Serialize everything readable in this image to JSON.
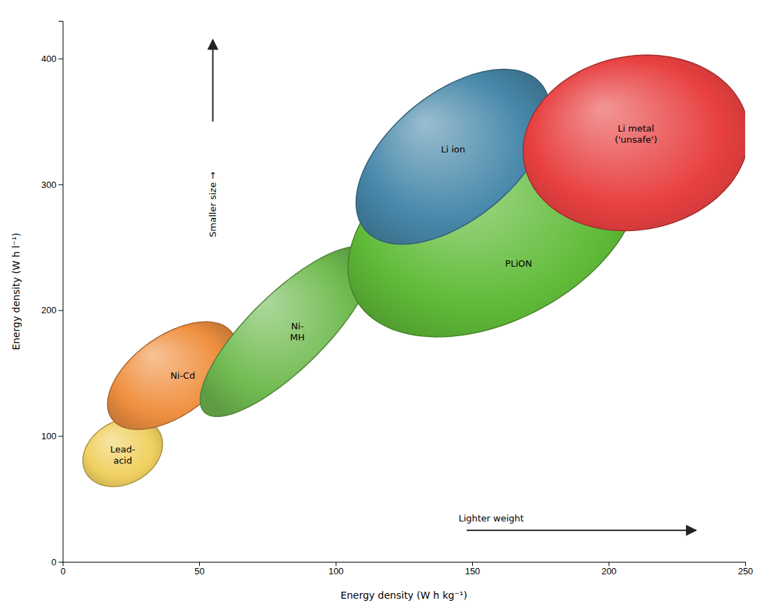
{
  "chart_data": {
    "type": "ellipse",
    "xlabel": "Energy density (W h kg⁻¹)",
    "ylabel": "Energy density (W h l⁻¹)",
    "xlim": [
      0,
      250
    ],
    "ylim": [
      0,
      430
    ],
    "xticks": [
      0,
      50,
      100,
      150,
      200,
      250
    ],
    "yticks": [
      0,
      100,
      200,
      300,
      400
    ],
    "grid": false,
    "series": [
      {
        "name": "Lead-\nacid",
        "color": "#f0d060",
        "cx": 22,
        "cy": 87,
        "width": 28,
        "height": 55,
        "angle": -10,
        "label_x": 22,
        "label_y": 85
      },
      {
        "name": "Ni-Cd",
        "color": "#f09040",
        "cx": 40,
        "cy": 148,
        "width": 38,
        "height": 90,
        "angle": -20,
        "label_x": 44,
        "label_y": 148
      },
      {
        "name": "Ni-\nMH",
        "color": "#70bb50",
        "cx": 82,
        "cy": 183,
        "width": 35,
        "height": 145,
        "angle": -22,
        "label_x": 86,
        "label_y": 183
      },
      {
        "name": "PLiON",
        "color": "#60bb38",
        "cx": 158,
        "cy": 268,
        "width": 95,
        "height": 185,
        "angle": -18,
        "label_x": 167,
        "label_y": 237
      },
      {
        "name": "Li ion",
        "color": "#4888aa",
        "cx": 143,
        "cy": 322,
        "width": 58,
        "height": 145,
        "angle": -18,
        "label_x": 143,
        "label_y": 328
      },
      {
        "name": "Li metal\n('unsafe')",
        "color": "#e84040",
        "cx": 210,
        "cy": 333,
        "width": 82,
        "height": 140,
        "angle": -5,
        "label_x": 210,
        "label_y": 340
      }
    ],
    "annotations": [
      {
        "text": "Smaller size →",
        "x": 55,
        "y": 310,
        "arrow": [
          [
            55,
            350
          ],
          [
            55,
            415
          ]
        ]
      },
      {
        "text": "Lighter weight",
        "x": 145,
        "y": 30,
        "arrow": [
          [
            148,
            25
          ],
          [
            232,
            25
          ]
        ]
      }
    ]
  }
}
